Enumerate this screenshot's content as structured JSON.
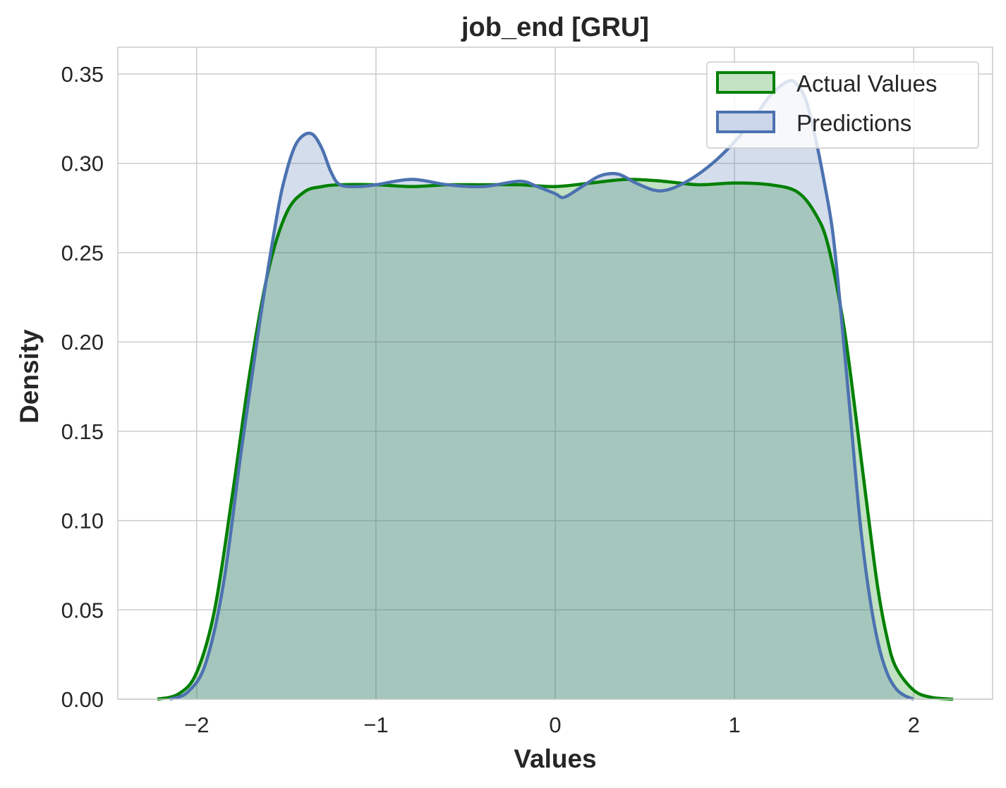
{
  "chart_data": {
    "type": "area",
    "title": "job_end [GRU]",
    "xlabel": "Values",
    "ylabel": "Density",
    "xlim": [
      -2.44,
      2.44
    ],
    "ylim": [
      0,
      0.365
    ],
    "xticks": [
      -2,
      -1,
      0,
      1,
      2
    ],
    "xtick_labels": [
      "−2",
      "−1",
      "0",
      "1",
      "2"
    ],
    "yticks": [
      0.0,
      0.05,
      0.1,
      0.15,
      0.2,
      0.25,
      0.3,
      0.35
    ],
    "ytick_labels": [
      "0.00",
      "0.05",
      "0.10",
      "0.15",
      "0.20",
      "0.25",
      "0.30",
      "0.35"
    ],
    "grid": true,
    "legend_position": "top-right",
    "series": [
      {
        "name": "Actual Values",
        "color": "#008000",
        "fill": "#c3e2c3",
        "x": [
          -2.22,
          -2.1,
          -2.0,
          -1.9,
          -1.8,
          -1.7,
          -1.6,
          -1.5,
          -1.4,
          -1.3,
          -1.2,
          -1.0,
          -0.8,
          -0.6,
          -0.4,
          -0.2,
          0.0,
          0.2,
          0.4,
          0.6,
          0.8,
          1.0,
          1.2,
          1.35,
          1.45,
          1.52,
          1.6,
          1.65,
          1.7,
          1.75,
          1.8,
          1.85,
          1.9,
          2.0,
          2.1,
          2.22
        ],
        "y": [
          0.0,
          0.003,
          0.015,
          0.05,
          0.115,
          0.185,
          0.24,
          0.272,
          0.284,
          0.287,
          0.288,
          0.288,
          0.287,
          0.288,
          0.288,
          0.288,
          0.287,
          0.289,
          0.291,
          0.29,
          0.288,
          0.289,
          0.288,
          0.284,
          0.272,
          0.255,
          0.215,
          0.18,
          0.14,
          0.1,
          0.062,
          0.035,
          0.018,
          0.005,
          0.001,
          0.0
        ]
      },
      {
        "name": "Predictions",
        "color": "#4c72b0",
        "fill": "#ccd6ea",
        "x": [
          -2.15,
          -2.05,
          -1.95,
          -1.85,
          -1.75,
          -1.65,
          -1.55,
          -1.5,
          -1.45,
          -1.4,
          -1.35,
          -1.3,
          -1.25,
          -1.2,
          -1.1,
          -1.0,
          -0.8,
          -0.6,
          -0.4,
          -0.2,
          -0.1,
          0.0,
          0.05,
          0.15,
          0.25,
          0.35,
          0.45,
          0.55,
          0.62,
          0.7,
          0.8,
          0.9,
          1.0,
          1.1,
          1.2,
          1.3,
          1.35,
          1.4,
          1.45,
          1.5,
          1.55,
          1.6,
          1.65,
          1.7,
          1.75,
          1.8,
          1.85,
          1.9,
          1.95,
          2.0
        ],
        "y": [
          0.0,
          0.004,
          0.02,
          0.065,
          0.14,
          0.21,
          0.272,
          0.295,
          0.31,
          0.316,
          0.316,
          0.308,
          0.295,
          0.288,
          0.287,
          0.288,
          0.291,
          0.288,
          0.287,
          0.29,
          0.287,
          0.283,
          0.281,
          0.287,
          0.293,
          0.294,
          0.289,
          0.285,
          0.285,
          0.288,
          0.294,
          0.302,
          0.312,
          0.324,
          0.338,
          0.346,
          0.344,
          0.335,
          0.315,
          0.29,
          0.26,
          0.21,
          0.155,
          0.1,
          0.06,
          0.032,
          0.015,
          0.006,
          0.002,
          0.0
        ]
      }
    ]
  }
}
